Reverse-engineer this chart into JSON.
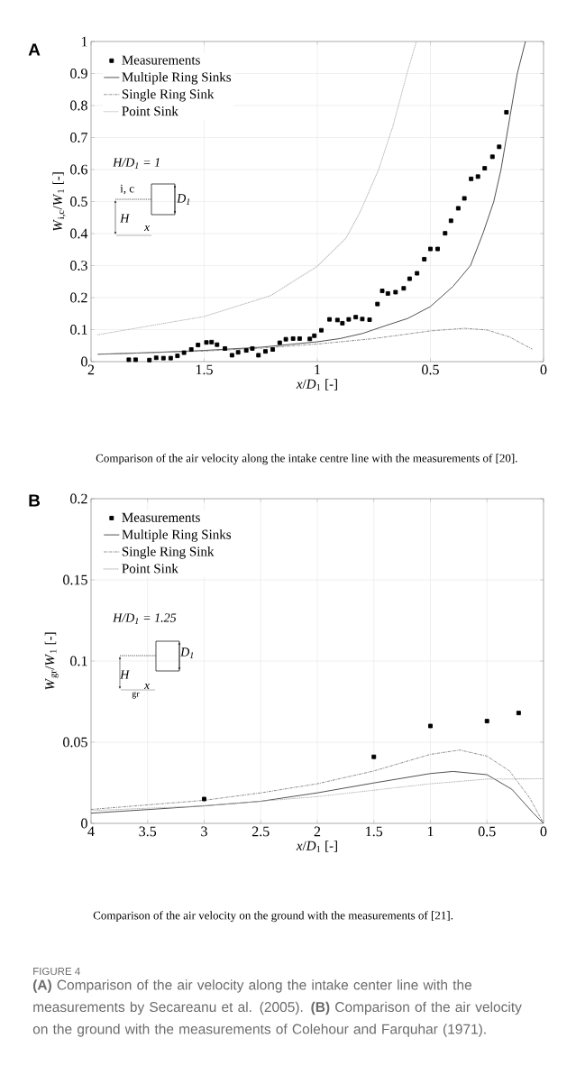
{
  "chart_data": [
    {
      "type": "line",
      "xlabel": "*x*/*D*$_{1}$ [-]",
      "ylabel": "*W*$_{i,c}$/*W*$_{1}$ [-]",
      "xlim": [
        2,
        0
      ],
      "ylim": [
        0,
        1
      ],
      "xticks": [
        2,
        1.5,
        1,
        0.5,
        0
      ],
      "yticks": [
        0,
        0.1,
        0.2,
        0.3,
        0.4,
        0.5,
        0.6,
        0.7,
        0.8,
        0.9,
        1
      ],
      "grid": true,
      "legend": "top left",
      "series": [
        {
          "name": "Measurements",
          "type": "scatter",
          "marker": "square",
          "color": "#000000",
          "x": [
            1.833,
            1.803,
            1.742,
            1.712,
            1.68,
            1.648,
            1.618,
            1.589,
            1.557,
            1.527,
            1.49,
            1.467,
            1.443,
            1.408,
            1.377,
            1.35,
            1.314,
            1.287,
            1.26,
            1.229,
            1.197,
            1.166,
            1.139,
            1.107,
            1.078,
            1.033,
            1.013,
            0.982,
            0.946,
            0.911,
            0.889,
            0.861,
            0.83,
            0.801,
            0.769,
            0.734,
            0.713,
            0.688,
            0.654,
            0.618,
            0.592,
            0.559,
            0.527,
            0.5,
            0.468,
            0.435,
            0.409,
            0.377,
            0.35,
            0.32,
            0.29,
            0.26,
            0.226,
            0.196,
            0.164
          ],
          "values": [
            0.006,
            0.006,
            0.005,
            0.012,
            0.011,
            0.011,
            0.018,
            0.028,
            0.038,
            0.052,
            0.06,
            0.061,
            0.053,
            0.041,
            0.02,
            0.029,
            0.035,
            0.041,
            0.02,
            0.032,
            0.038,
            0.059,
            0.07,
            0.072,
            0.072,
            0.071,
            0.081,
            0.098,
            0.132,
            0.13,
            0.12,
            0.132,
            0.139,
            0.133,
            0.131,
            0.18,
            0.221,
            0.213,
            0.217,
            0.229,
            0.259,
            0.276,
            0.32,
            0.352,
            0.352,
            0.401,
            0.44,
            0.479,
            0.51,
            0.571,
            0.578,
            0.604,
            0.64,
            0.671,
            0.779
          ]
        },
        {
          "name": "Multiple Ring Sinks",
          "marker": "none",
          "line_style": "solid",
          "color": "#404040",
          "x": [
            1.97,
            1.75,
            1.5,
            1.25,
            1,
            0.9,
            0.8,
            0.75,
            0.7,
            0.6,
            0.5,
            0.4,
            0.323,
            0.268,
            0.22,
            0.188,
            0.164,
            0.14,
            0.116,
            0.08
          ],
          "values": [
            0.023,
            0.028,
            0.035,
            0.045,
            0.062,
            0.072,
            0.088,
            0.1,
            0.112,
            0.135,
            0.172,
            0.235,
            0.3,
            0.4,
            0.5,
            0.6,
            0.7,
            0.8,
            0.9,
            1.0
          ]
        },
        {
          "name": "Single Ring Sink",
          "marker": "none",
          "line_style": "dashed",
          "color": "#808080",
          "x": [
            1.97,
            1.5,
            1.25,
            1,
            0.75,
            0.5,
            0.35,
            0.25,
            0.15,
            0.05
          ],
          "values": [
            0.023,
            0.033,
            0.042,
            0.055,
            0.072,
            0.096,
            0.104,
            0.099,
            0.077,
            0.039
          ]
        },
        {
          "name": "Point Sink",
          "marker": "none",
          "line_style": "dotted",
          "color": "#b3b3b3",
          "x": [
            1.97,
            1.5,
            1.207,
            1,
            0.873,
            0.809,
            0.729,
            0.666,
            0.602,
            0.562
          ],
          "values": [
            0.084,
            0.141,
            0.206,
            0.298,
            0.386,
            0.47,
            0.6,
            0.735,
            0.904,
            1.0
          ]
        }
      ],
      "annotations": [
        "A",
        "*H*/*D*$_{1}$ = 1",
        "i, c",
        "D$_{1}$",
        "H",
        "x",
        "Comparison of the air velocity along the intake centre line with the measurements of [20]."
      ]
    },
    {
      "type": "line",
      "xlabel": "*x*/*D*$_{1}$ [-]",
      "ylabel": "*W*$_{gr}$/*W*$_{1}$ [-]",
      "xlim": [
        4,
        0
      ],
      "ylim": [
        0,
        0.2
      ],
      "xticks": [
        4,
        3.5,
        3,
        2.5,
        2,
        1.5,
        1,
        0.5,
        0
      ],
      "yticks": [
        0,
        0.05,
        0.1,
        0.15,
        0.2
      ],
      "grid": true,
      "legend": "top left",
      "series": [
        {
          "name": "Measurements",
          "type": "scatter",
          "marker": "square",
          "color": "#000000",
          "x": [
            3,
            1.5,
            1,
            0.5,
            0.22
          ],
          "values": [
            0.015,
            0.041,
            0.06,
            0.063,
            0.068
          ]
        },
        {
          "name": "Multiple Ring Sinks",
          "marker": "none",
          "line_style": "solid",
          "color": "#404040",
          "x": [
            4,
            3.5,
            3,
            2.5,
            2,
            1.5,
            1,
            0.8,
            0.5,
            0.28,
            0.09,
            0
          ],
          "values": [
            0.0063,
            0.0085,
            0.0108,
            0.0136,
            0.0188,
            0.0249,
            0.0307,
            0.032,
            0.03,
            0.021,
            0.0063,
            0
          ]
        },
        {
          "name": "Single Ring Sink",
          "marker": "none",
          "line_style": "dashed",
          "color": "#808080",
          "x": [
            4,
            3,
            2.5,
            2,
            1.5,
            1,
            0.74,
            0.5,
            0.3,
            0.12,
            0
          ],
          "values": [
            0.0086,
            0.0142,
            0.0188,
            0.0244,
            0.0323,
            0.0425,
            0.0452,
            0.0414,
            0.0323,
            0.0154,
            0
          ]
        },
        {
          "name": "Point Sink",
          "marker": "none",
          "line_style": "dotted",
          "color": "#b3b3b3",
          "x": [
            4,
            3,
            2,
            1,
            0.5,
            0
          ],
          "values": [
            0.0079,
            0.0108,
            0.0165,
            0.0244,
            0.0273,
            0.0275
          ]
        }
      ],
      "annotations": [
        "B",
        "*H*/*D*$_{1}$ = 1.25",
        "D$_{1}$",
        "H",
        "x",
        "gr",
        "Comparison of the air velocity on the ground with the measurements of [21].",
        "FIGURE 4",
        "**(A)** Comparison of the air velocity along the intake center line with the measurements by Secareanu et al. (2005). **(B)** Comparison of the air velocity on the ground with the measurements of Colehour and Farquhar (1971)."
      ]
    }
  ]
}
